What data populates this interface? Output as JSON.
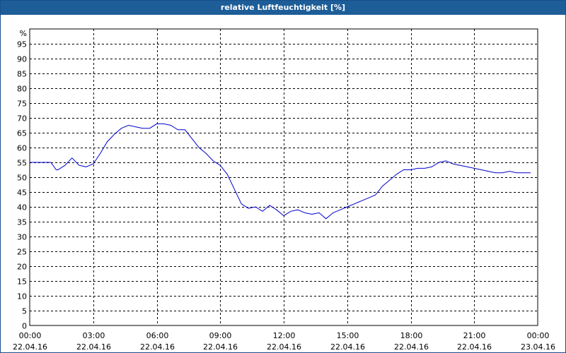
{
  "window": {
    "title": "relative Luftfeuchtigkeit [%]"
  },
  "colors": {
    "titlebar": "#1d5d98",
    "line": "#0000cc",
    "grid": "#000000",
    "background": "#ffffff"
  },
  "chart_data": {
    "type": "line",
    "title": "relative Luftfeuchtigkeit [%]",
    "ylabel": "%",
    "xlabel": "",
    "ylim": [
      0,
      100
    ],
    "y_ticks": [
      0,
      5,
      10,
      15,
      20,
      25,
      30,
      35,
      40,
      45,
      50,
      55,
      60,
      65,
      70,
      75,
      80,
      85,
      90,
      95
    ],
    "xlim": [
      "22.04.16 00:00",
      "23.04.16 00:00"
    ],
    "grid": true,
    "x_ticks": [
      {
        "time": "00:00",
        "date": "22.04.16"
      },
      {
        "time": "03:00",
        "date": "22.04.16"
      },
      {
        "time": "06:00",
        "date": "22.04.16"
      },
      {
        "time": "09:00",
        "date": "22.04.16"
      },
      {
        "time": "12:00",
        "date": "22.04.16"
      },
      {
        "time": "15:00",
        "date": "22.04.16"
      },
      {
        "time": "18:00",
        "date": "22.04.16"
      },
      {
        "time": "21:00",
        "date": "22.04.16"
      },
      {
        "time": "00:00",
        "date": "23.04.16"
      }
    ],
    "series": [
      {
        "x": [
          "00:00",
          "00:20",
          "00:40",
          "01:00",
          "01:15",
          "01:20",
          "01:40",
          "02:00",
          "02:20",
          "02:40",
          "03:00",
          "03:20",
          "03:40",
          "04:00",
          "04:20",
          "04:40",
          "05:00",
          "05:20",
          "05:40",
          "06:00",
          "06:20",
          "06:40",
          "07:00",
          "07:20",
          "07:40",
          "08:00",
          "08:20",
          "08:40",
          "09:00",
          "09:20",
          "09:40",
          "10:00",
          "10:20",
          "10:40",
          "11:00",
          "11:20",
          "11:40",
          "12:00",
          "12:20",
          "12:40",
          "13:00",
          "13:20",
          "13:40",
          "14:00",
          "14:20",
          "14:40",
          "15:00",
          "15:20",
          "15:40",
          "16:00",
          "16:20",
          "16:40",
          "17:00",
          "17:20",
          "17:40",
          "18:00",
          "18:20",
          "18:40",
          "19:00",
          "19:20",
          "19:40",
          "20:00",
          "20:20",
          "20:40",
          "21:00",
          "21:20",
          "21:40",
          "22:00",
          "22:20",
          "22:40",
          "23:00",
          "23:20",
          "23:40"
        ],
        "y": [
          55,
          55,
          55,
          55,
          52.5,
          52.5,
          54,
          56.5,
          54,
          53.5,
          54.5,
          58,
          62,
          64.5,
          66.5,
          67.5,
          67,
          66.5,
          66.5,
          68,
          68,
          67.5,
          66,
          66,
          63,
          60,
          58,
          55.5,
          54,
          51,
          46,
          41,
          39.5,
          40,
          38.5,
          40.5,
          39,
          37,
          38.5,
          39,
          38,
          37.5,
          38,
          36,
          38,
          39,
          40,
          41,
          42,
          43,
          44,
          47,
          49,
          51,
          52.5,
          52.5,
          53,
          53,
          53.5,
          55,
          55.5,
          54.5,
          54,
          53.5,
          53,
          52.5,
          52,
          51.5,
          51.5,
          52,
          51.5,
          51.5,
          51.5
        ]
      }
    ]
  }
}
